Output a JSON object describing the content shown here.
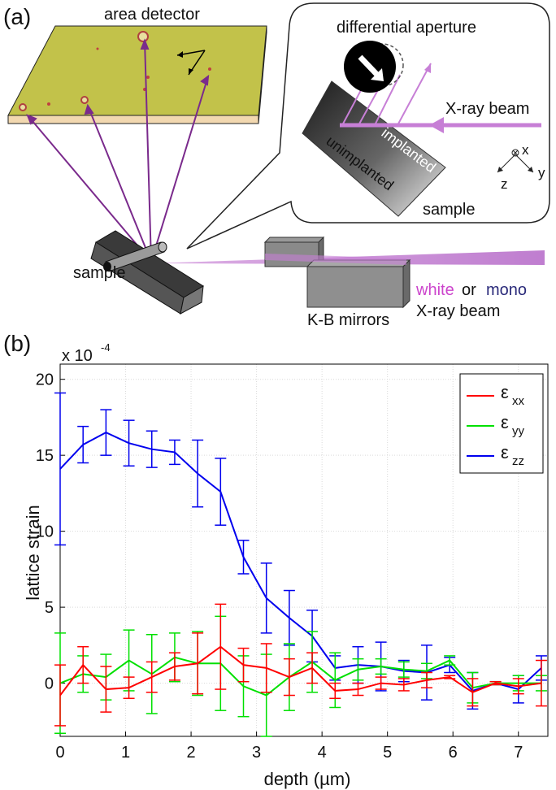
{
  "panel_a": {
    "panel_label": "(a)",
    "area_detector": "area detector",
    "differential_aperture": "differential aperture",
    "xray_beam_inset": "X-ray beam",
    "implanted": "implanted",
    "unimplanted": "unimplanted",
    "sample_inset": "sample",
    "axis_x": "x",
    "axis_y": "y",
    "axis_z": "z",
    "sample": "sample",
    "kb_mirrors": "K-B mirrors",
    "white": "white",
    "or": "or",
    "mono": "mono",
    "xray_beam": "X-ray beam",
    "colors": {
      "beam": "#c77fd6",
      "ray": "#7a2a8c",
      "detector": "#c2c24a",
      "white_word": "#cc44cc",
      "mono_word": "#2a2a7a"
    }
  },
  "panel_b": {
    "panel_label": "(b)",
    "scale_label": "x 10",
    "scale_exp": "-4",
    "grid_lines": [
      "y",
      "x"
    ],
    "legend": [
      {
        "sym": "ε",
        "sub": "xx",
        "color": "#ff0000"
      },
      {
        "sym": "ε",
        "sub": "yy",
        "color": "#00e000"
      },
      {
        "sym": "ε",
        "sub": "zz",
        "color": "#0000ee"
      }
    ]
  },
  "chart_data": {
    "type": "line",
    "xlabel": "depth (µm)",
    "ylabel": "lattice strain",
    "xlim": [
      0,
      7.45
    ],
    "ylim": [
      -3.5,
      21
    ],
    "xticks": [
      0,
      1,
      2,
      3,
      4,
      5,
      6,
      7
    ],
    "yticks": [
      0,
      5,
      10,
      15,
      20
    ],
    "grid": true,
    "legend_position": "top-right",
    "x": [
      0,
      0.35,
      0.7,
      1.05,
      1.4,
      1.75,
      2.1,
      2.45,
      2.8,
      3.15,
      3.5,
      3.85,
      4.2,
      4.55,
      4.9,
      5.25,
      5.6,
      5.95,
      6.3,
      6.65,
      7.0,
      7.35
    ],
    "series": [
      {
        "name": "εxx",
        "color": "#ff0000",
        "values": [
          -0.8,
          1.2,
          -0.4,
          -0.3,
          0.4,
          1.1,
          1.3,
          2.4,
          1.2,
          1.0,
          0.4,
          1.0,
          -0.5,
          -0.4,
          0.0,
          -0.1,
          0.2,
          0.4,
          -0.6,
          0.0,
          -0.2,
          0.0
        ],
        "errors": [
          2.0,
          1.2,
          1.5,
          0.7,
          1.0,
          0.9,
          2.0,
          2.8,
          1.1,
          1.6,
          1.2,
          1.0,
          0.5,
          0.4,
          0.4,
          0.4,
          0.5,
          0.1,
          0.9,
          0.1,
          0.5,
          1.5
        ]
      },
      {
        "name": "εyy",
        "color": "#00e000",
        "values": [
          0.0,
          0.6,
          0.4,
          1.5,
          0.6,
          1.7,
          1.3,
          1.3,
          -0.2,
          -0.8,
          0.4,
          1.4,
          0.2,
          0.9,
          1.1,
          0.9,
          0.8,
          1.5,
          -0.3,
          0.0,
          0.0,
          0.0
        ],
        "errors": [
          3.3,
          1.2,
          1.5,
          2.0,
          2.6,
          1.6,
          2.1,
          3.1,
          2.0,
          2.7,
          2.2,
          2.0,
          1.8,
          0.7,
          0.5,
          0.5,
          0.5,
          0.3,
          1.0,
          0.1,
          0.5,
          0.5
        ]
      },
      {
        "name": "εzz",
        "color": "#0000ee",
        "values": [
          14.1,
          15.7,
          16.5,
          15.8,
          15.4,
          15.2,
          13.8,
          12.6,
          8.3,
          5.6,
          4.3,
          3.1,
          1.0,
          1.2,
          1.1,
          0.8,
          0.7,
          1.2,
          -0.5,
          0.0,
          -0.4,
          1.0
        ]
      },
      {
        "name": "εzz err",
        "color": "#0000ee",
        "values": [
          5.0,
          1.2,
          1.5,
          1.5,
          1.2,
          0.8,
          2.2,
          2.2,
          1.1,
          2.3,
          1.8,
          1.7,
          0.8,
          1.2,
          1.6,
          0.7,
          1.8,
          0.5,
          1.2,
          0.1,
          0.9,
          0.8
        ]
      }
    ]
  }
}
